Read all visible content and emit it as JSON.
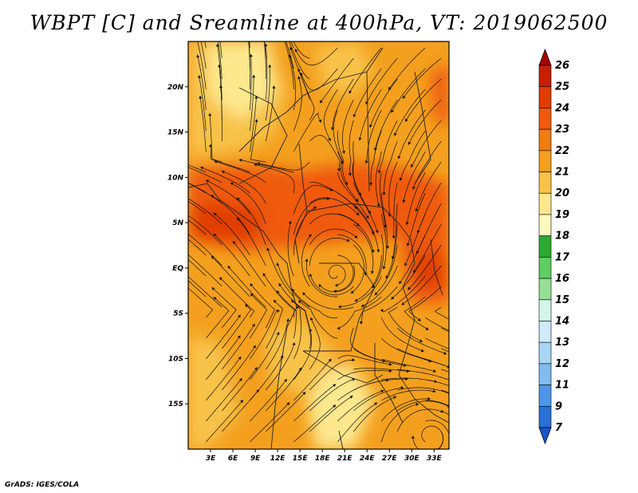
{
  "title": "WBPT [C] and Sreamline at 400hPa, VT: 2019062500",
  "footer": "GrADS: IGES/COLA",
  "map": {
    "lon_range": [
      0,
      35
    ],
    "lat_range": [
      -20,
      25
    ],
    "lon_ticks": [
      "3E",
      "6E",
      "9E",
      "12E",
      "15E",
      "18E",
      "21E",
      "24E",
      "27E",
      "30E",
      "33E"
    ],
    "lat_ticks": [
      "20N",
      "15N",
      "10N",
      "5N",
      "EQ",
      "5S",
      "10S",
      "15S"
    ]
  },
  "colorbar": {
    "labels": [
      "26",
      "25",
      "24",
      "23",
      "22",
      "21",
      "20",
      "19",
      "18",
      "17",
      "16",
      "15",
      "14",
      "13",
      "12",
      "11",
      "9",
      "7"
    ],
    "colors": [
      "#a50000",
      "#c81e00",
      "#e03c00",
      "#ef5a10",
      "#f07c14",
      "#f4a01e",
      "#f8c24a",
      "#fde88e",
      "#fdf7c0",
      "#2ea82e",
      "#5fcd5f",
      "#96e096",
      "#d4f5ea",
      "#cfeaf8",
      "#a9d6f4",
      "#7fbcef",
      "#4f97e6",
      "#2a6fd4",
      "#1a55c8"
    ],
    "top_arrow_color": "#a50000",
    "bottom_arrow_color": "#1a55c8"
  },
  "colors": {
    "warm_high": "#ef5a10",
    "warm_mid": "#f4a01e",
    "warm_low": "#f8c24a",
    "warm_pale": "#fde88e"
  }
}
